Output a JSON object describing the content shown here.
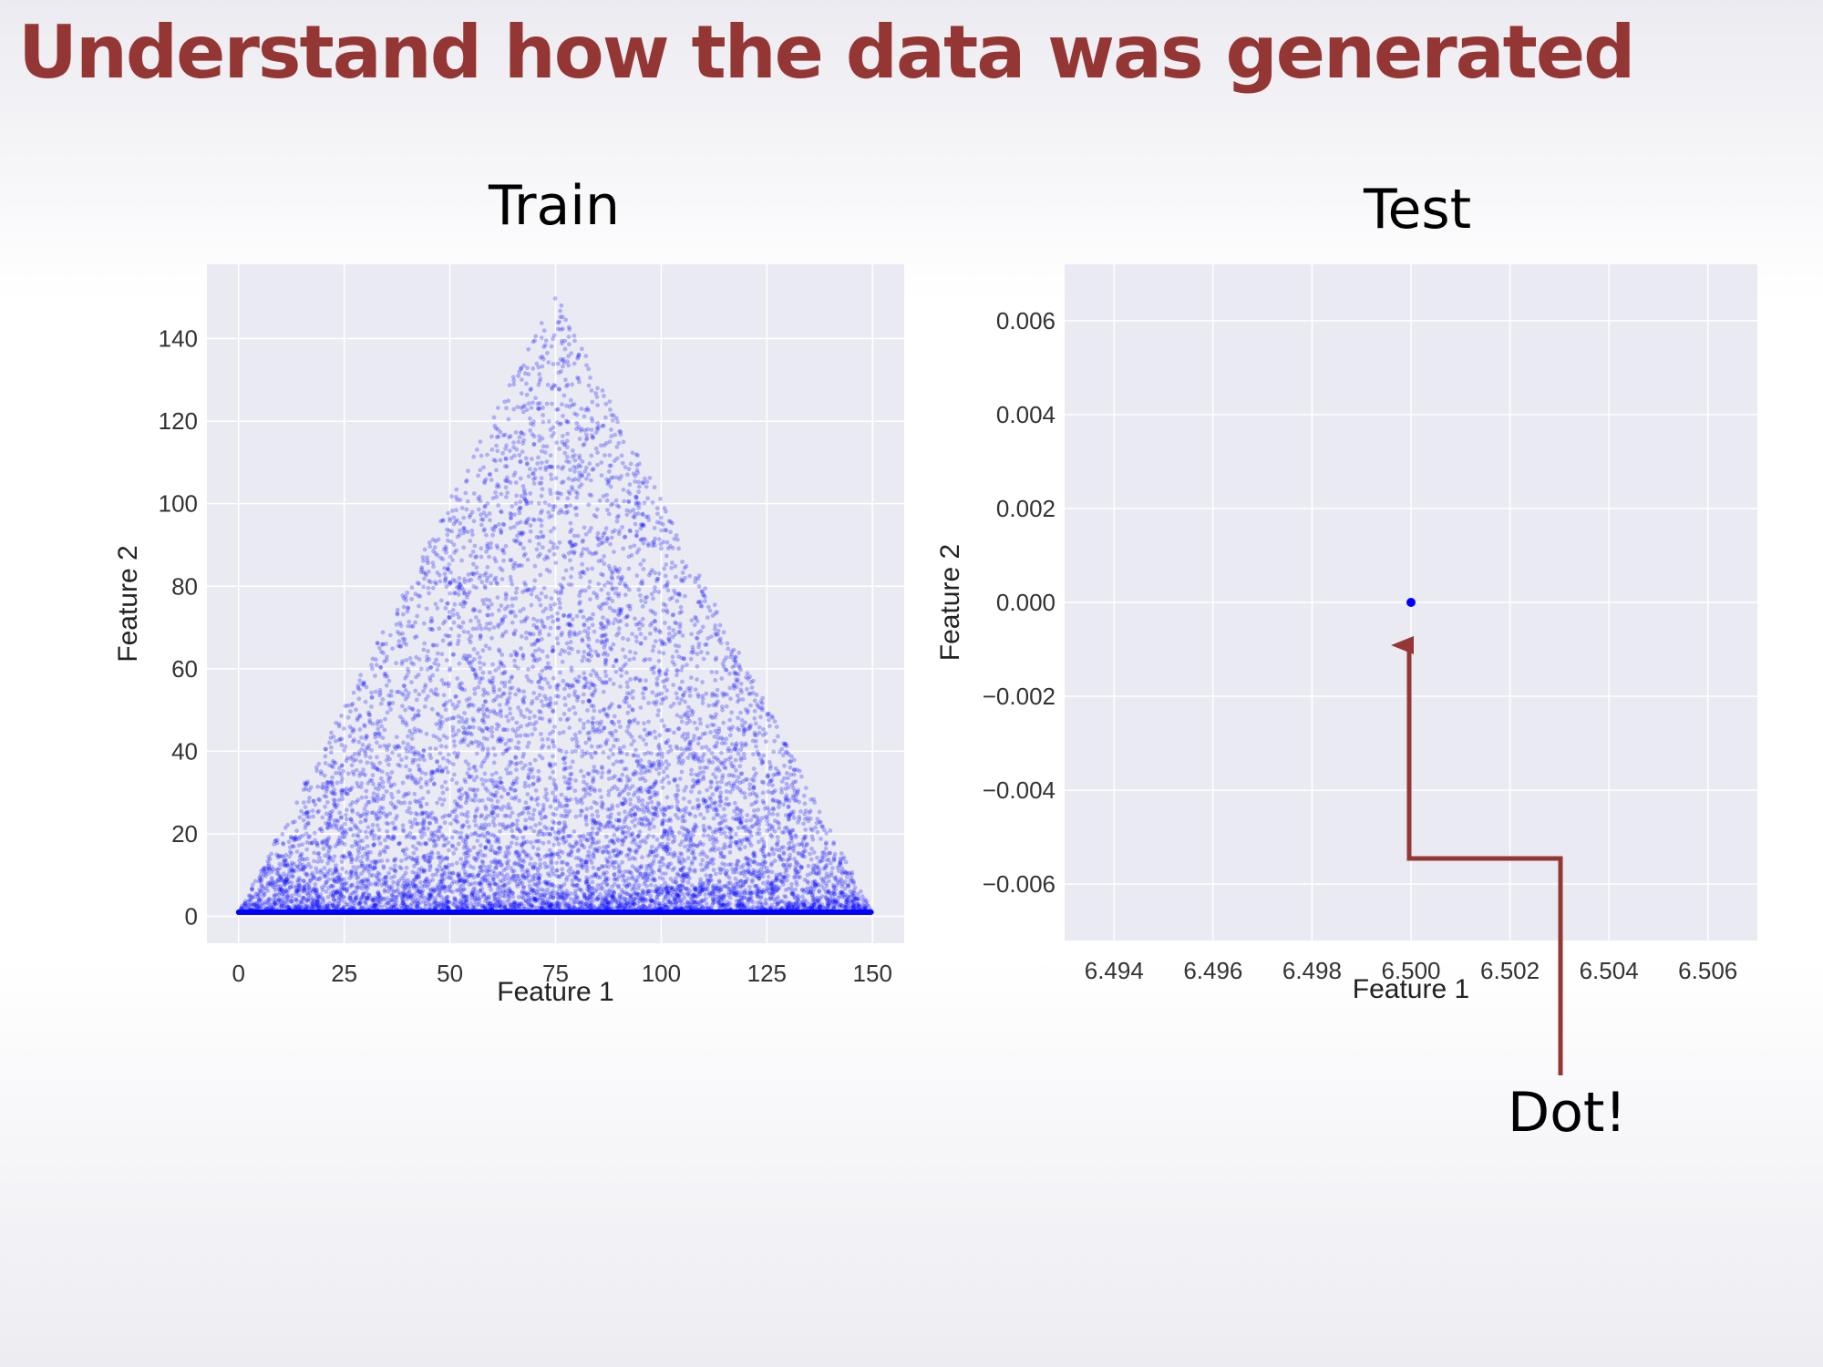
{
  "slide_title": "Understand how the data was generated",
  "callout": {
    "text": "Dot!",
    "color": "#943634"
  },
  "chart_data": [
    {
      "type": "scatter",
      "title": "Train",
      "xlabel": "Feature 1",
      "ylabel": "Feature 2",
      "xlim": [
        -7.5,
        157.5
      ],
      "ylim": [
        -6.5,
        158
      ],
      "xticks": [
        0,
        25,
        50,
        75,
        100,
        125,
        150
      ],
      "yticks": [
        0,
        20,
        40,
        60,
        80,
        100,
        120,
        140
      ],
      "xtick_labels": [
        "0",
        "25",
        "50",
        "75",
        "100",
        "125",
        "150"
      ],
      "ytick_labels": [
        "0",
        "20",
        "40",
        "60",
        "80",
        "100",
        "120",
        "140"
      ],
      "grid": true,
      "point_color": "#0000ff",
      "point_alpha": 0.25,
      "distribution": {
        "shape": "triangle",
        "vertices": [
          [
            0,
            1
          ],
          [
            150,
            1
          ],
          [
            75,
            151
          ]
        ],
        "density": "dense near Feature 2 = 0, sparser toward apex"
      }
    },
    {
      "type": "scatter",
      "title": "Test",
      "xlabel": "Feature 1",
      "ylabel": "Feature 2",
      "xlim": [
        6.493,
        6.507
      ],
      "ylim": [
        -0.0072,
        0.0072
      ],
      "xticks": [
        6.494,
        6.496,
        6.498,
        6.5,
        6.502,
        6.504,
        6.506
      ],
      "yticks": [
        0.006,
        0.004,
        0.002,
        0.0,
        -0.002,
        -0.004,
        -0.006
      ],
      "xtick_labels": [
        "6.494",
        "6.496",
        "6.498",
        "6.500",
        "6.502",
        "6.504",
        "6.506"
      ],
      "ytick_labels": [
        "0.006",
        "0.004",
        "0.002",
        "0.000",
        "−0.002",
        "−0.004",
        "−0.006"
      ],
      "grid": true,
      "point_color": "#0000ff",
      "points": [
        {
          "x": 6.5,
          "y": 0.0
        }
      ]
    }
  ]
}
